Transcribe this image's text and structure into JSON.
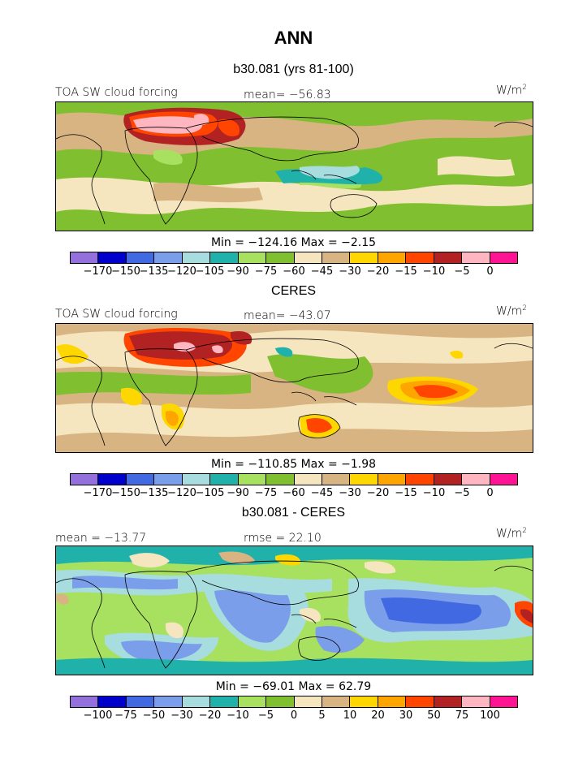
{
  "title": "ANN",
  "panels": [
    {
      "subtitle": "b30.081 (yrs 81-100)",
      "left_label": "TOA SW cloud forcing",
      "center_label": "mean= −56.83",
      "units": "W/m",
      "units_sup": "2",
      "minmax": "Min = −124.16 Max =  −2.15",
      "colors": [
        "#9370db",
        "#0000cd",
        "#4169e1",
        "#7b9eea",
        "#a8dde0",
        "#20b2aa",
        "#a8e060",
        "#80c030",
        "#f5e6c0",
        "#d8b483",
        "#ffd700",
        "#ffa500",
        "#ff4500",
        "#b22222",
        "#ffb6c1",
        "#ff1493"
      ],
      "ticks": [
        "−170",
        "−150",
        "−135",
        "−120",
        "−105",
        "−90",
        "−75",
        "−60",
        "−45",
        "−30",
        "−20",
        "−15",
        "−10",
        "−5",
        "0"
      ]
    },
    {
      "subtitle": "CERES",
      "left_label": "TOA SW cloud forcing",
      "center_label": "mean= −43.07",
      "units": "W/m",
      "units_sup": "2",
      "minmax": "Min = −110.85 Max =  −1.98",
      "colors": [
        "#9370db",
        "#0000cd",
        "#4169e1",
        "#7b9eea",
        "#a8dde0",
        "#20b2aa",
        "#a8e060",
        "#80c030",
        "#f5e6c0",
        "#d8b483",
        "#ffd700",
        "#ffa500",
        "#ff4500",
        "#b22222",
        "#ffb6c1",
        "#ff1493"
      ],
      "ticks": [
        "−170",
        "−150",
        "−135",
        "−120",
        "−105",
        "−90",
        "−75",
        "−60",
        "−45",
        "−30",
        "−20",
        "−15",
        "−10",
        "−5",
        "0"
      ]
    },
    {
      "subtitle": "b30.081 - CERES",
      "left_label": "mean = −13.77",
      "center_label": "rmse =  22.10",
      "units": "W/m",
      "units_sup": "2",
      "minmax": "Min = −69.01 Max =  62.79",
      "colors": [
        "#9370db",
        "#0000cd",
        "#4169e1",
        "#7b9eea",
        "#a8dde0",
        "#20b2aa",
        "#a8e060",
        "#80c030",
        "#f5e6c0",
        "#d8b483",
        "#ffd700",
        "#ffa500",
        "#ff4500",
        "#b22222",
        "#ffb6c1",
        "#ff1493"
      ],
      "ticks": [
        "−100",
        "−75",
        "−50",
        "−30",
        "−20",
        "−10",
        "−5",
        "0",
        "5",
        "10",
        "20",
        "30",
        "50",
        "75",
        "100"
      ]
    }
  ],
  "chart_data": [
    {
      "type": "heatmap",
      "title": "b30.081 (yrs 81-100)",
      "field": "TOA SW cloud forcing",
      "units": "W/m2",
      "mean": -56.83,
      "min": -124.16,
      "max": -2.15,
      "contour_levels": [
        -170,
        -150,
        -135,
        -120,
        -105,
        -90,
        -75,
        -60,
        -45,
        -30,
        -20,
        -15,
        -10,
        -5,
        0
      ]
    },
    {
      "type": "heatmap",
      "title": "CERES",
      "field": "TOA SW cloud forcing",
      "units": "W/m2",
      "mean": -43.07,
      "min": -110.85,
      "max": -1.98,
      "contour_levels": [
        -170,
        -150,
        -135,
        -120,
        -105,
        -90,
        -75,
        -60,
        -45,
        -30,
        -20,
        -15,
        -10,
        -5,
        0
      ]
    },
    {
      "type": "heatmap",
      "title": "b30.081 - CERES",
      "units": "W/m2",
      "mean": -13.77,
      "rmse": 22.1,
      "min": -69.01,
      "max": 62.79,
      "contour_levels": [
        -100,
        -75,
        -50,
        -30,
        -20,
        -10,
        -5,
        0,
        5,
        10,
        20,
        30,
        50,
        75,
        100
      ]
    }
  ]
}
